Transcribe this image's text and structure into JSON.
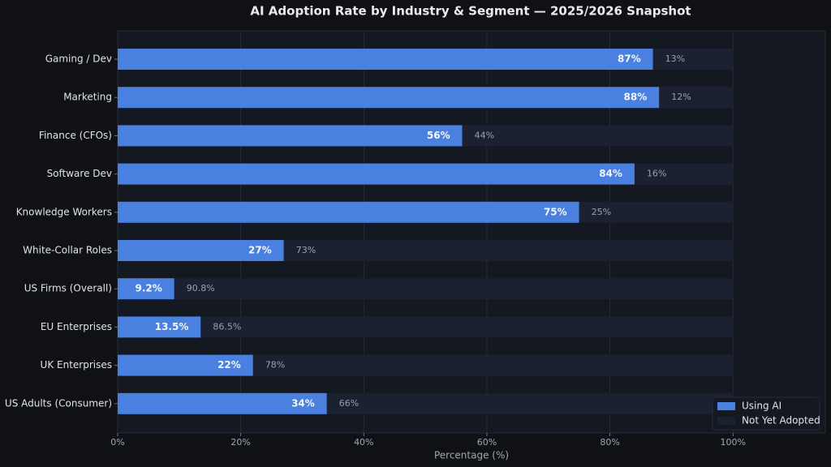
{
  "chart_data": {
    "type": "stacked_barh",
    "title": "AI Adoption Rate by Industry & Segment — 2025/2026 Snapshot",
    "xlabel": "Percentage (%)",
    "categories": [
      "Gaming / Dev",
      "Marketing",
      "Finance (CFOs)",
      "Software Dev",
      "Knowledge Workers",
      "White-Collar Roles",
      "US Firms (Overall)",
      "EU Enterprises",
      "UK Enterprises",
      "US Adults (Consumer)"
    ],
    "series": [
      {
        "name": "Using AI",
        "color": "#4a80e0",
        "values": [
          87,
          88,
          56,
          84,
          75,
          27,
          9.2,
          13.5,
          22,
          34
        ],
        "value_labels": [
          "87%",
          "88%",
          "56%",
          "84%",
          "75%",
          "27%",
          "9.2%",
          "13.5%",
          "22%",
          "34%"
        ]
      },
      {
        "name": "Not Yet Adopted",
        "color": "#1b2130",
        "values": [
          13,
          12,
          44,
          16,
          25,
          73,
          90.8,
          86.5,
          78,
          66
        ],
        "value_labels": [
          "13%",
          "12%",
          "44%",
          "16%",
          "25%",
          "73%",
          "90.8%",
          "86.5%",
          "78%",
          "66%"
        ]
      }
    ],
    "xlim": [
      0,
      115
    ],
    "xticks": [
      {
        "value": 0,
        "label": "0%"
      },
      {
        "value": 20,
        "label": "20%"
      },
      {
        "value": 40,
        "label": "40%"
      },
      {
        "value": 60,
        "label": "60%"
      },
      {
        "value": 80,
        "label": "80%"
      },
      {
        "value": 100,
        "label": "100%"
      }
    ],
    "grid": true,
    "legend": "lower right"
  }
}
